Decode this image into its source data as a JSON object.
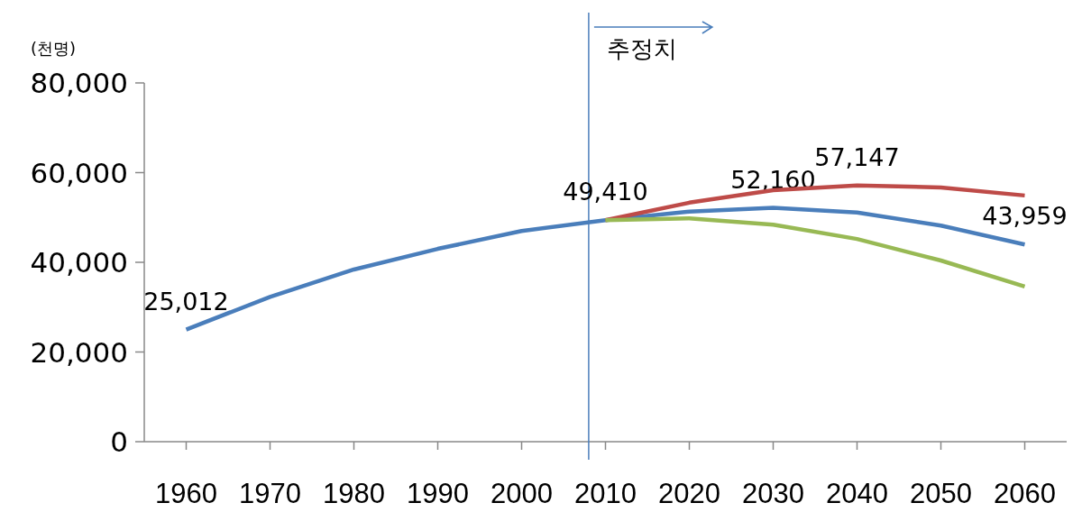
{
  "chart_data": {
    "type": "line",
    "ylabel": "(천명)",
    "x": [
      1960,
      1970,
      1980,
      1990,
      2000,
      2010,
      2020,
      2030,
      2040,
      2050,
      2060
    ],
    "xlim": [
      1955,
      2065
    ],
    "xticks": [
      1960,
      1970,
      1980,
      1990,
      2000,
      2010,
      2020,
      2030,
      2040,
      2050,
      2060
    ],
    "ylim": [
      0,
      80000
    ],
    "yticks": [
      0,
      {
        "value": 20000,
        "label": "20,000"
      },
      {
        "value": 40000,
        "label": "40,000"
      },
      {
        "value": 60000,
        "label": "60,000"
      },
      {
        "value": 80000,
        "label": "80,000"
      }
    ],
    "series": [
      {
        "color": "#4a7ebb",
        "values": [
          25012,
          32300,
          38400,
          43000,
          47000,
          49410,
          51300,
          52160,
          51100,
          48200,
          43959
        ],
        "value_labels": [
          "25,012",
          null,
          null,
          null,
          null,
          "49,410",
          null,
          "52,160",
          null,
          null,
          "43,959"
        ]
      },
      {
        "color": "#be4b48",
        "x": [
          2010,
          2020,
          2030,
          2040,
          2050,
          2060
        ],
        "values": [
          49410,
          53300,
          56100,
          57147,
          56700,
          54900
        ],
        "value_labels": [
          null,
          null,
          null,
          "57,147",
          null,
          null
        ]
      },
      {
        "color": "#98b954",
        "x": [
          2010,
          2020,
          2030,
          2040,
          2050,
          2060
        ],
        "values": [
          49410,
          49800,
          48400,
          45200,
          40400,
          34600
        ]
      }
    ],
    "ref_lines": [
      {
        "axis": "x",
        "value": 2008,
        "label": "추정치",
        "color": "#4a7ebb"
      }
    ],
    "grid": false
  }
}
